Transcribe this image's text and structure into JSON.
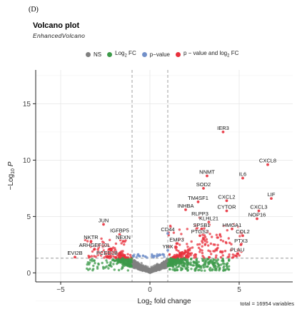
{
  "panel_label": "(D)",
  "chart_data": {
    "type": "scatter",
    "title": "Volcano plot",
    "subtitle": "EnhancedVolcano",
    "xlabel": "Log2 fold change",
    "ylabel": "-Log10 P",
    "xlim": [
      -6.4,
      8.0
    ],
    "ylim": [
      -0.8,
      18.0
    ],
    "x_ticks": [
      -5,
      0,
      5
    ],
    "y_ticks": [
      0,
      5,
      10,
      15
    ],
    "grid": true,
    "legend_position": "top",
    "fc_cutoff": 1,
    "p_cutoff_neglog10": 1.3,
    "colors": {
      "ns": "#808080",
      "log2fc": "#3c9a49",
      "pvalue": "#7290c9",
      "both": "#e8303c",
      "cutoff_line": "#888888"
    },
    "legend": [
      {
        "label": "NS",
        "color": "#808080"
      },
      {
        "label": "Log2 FC",
        "color": "#3c9a49"
      },
      {
        "label": "p−value",
        "color": "#7290c9"
      },
      {
        "label": "p − value and log2 FC",
        "color": "#e8303c"
      }
    ],
    "labeled_points": [
      {
        "label": "IER3",
        "x": 4.1,
        "y": 12.5
      },
      {
        "label": "CXCL8",
        "x": 6.6,
        "y": 9.6
      },
      {
        "label": "NNMT",
        "x": 3.2,
        "y": 8.6
      },
      {
        "label": "IL6",
        "x": 5.2,
        "y": 8.4
      },
      {
        "label": "SOD2",
        "x": 3.0,
        "y": 7.5
      },
      {
        "label": "LIF",
        "x": 6.8,
        "y": 6.6
      },
      {
        "label": "TM4SF1",
        "x": 2.7,
        "y": 6.3
      },
      {
        "label": "CXCL2",
        "x": 4.3,
        "y": 6.4
      },
      {
        "label": "CXCL3",
        "x": 6.1,
        "y": 5.5
      },
      {
        "label": "INHBA",
        "x": 2.0,
        "y": 5.6
      },
      {
        "label": "CYTOR",
        "x": 4.3,
        "y": 5.5
      },
      {
        "label": "RLPP3",
        "x": 2.8,
        "y": 4.9
      },
      {
        "label": "NOP16",
        "x": 6.0,
        "y": 4.8
      },
      {
        "label": "KLHL21",
        "x": 3.3,
        "y": 4.5
      },
      {
        "label": "SPSB1",
        "x": 2.9,
        "y": 3.9
      },
      {
        "label": "HMGA1",
        "x": 4.6,
        "y": 3.9
      },
      {
        "label": "CD44",
        "x": 1.0,
        "y": 3.5
      },
      {
        "label": "PTGS2",
        "x": 2.8,
        "y": 3.3
      },
      {
        "label": "COL2",
        "x": 5.2,
        "y": 3.3
      },
      {
        "label": "PTX3",
        "x": 5.1,
        "y": 2.5
      },
      {
        "label": "EMP3",
        "x": 1.5,
        "y": 2.6
      },
      {
        "label": "PLAU",
        "x": 4.9,
        "y": 1.7
      },
      {
        "label": "YBX",
        "x": 1.0,
        "y": 2.0
      },
      {
        "label": "JUN",
        "x": -2.6,
        "y": 4.3
      },
      {
        "label": "IGFBP5",
        "x": -1.7,
        "y": 3.4
      },
      {
        "label": "NKTR",
        "x": -3.3,
        "y": 2.8
      },
      {
        "label": "NEXN",
        "x": -1.5,
        "y": 2.8
      },
      {
        "label": "ARHGEF10L",
        "x": -3.1,
        "y": 2.1
      },
      {
        "label": "EVI2B",
        "x": -4.2,
        "y": 1.4
      },
      {
        "label": "PCED1B",
        "x": -2.4,
        "y": 1.4
      }
    ],
    "total_variables": 16954
  },
  "caption": "total = 16954 variables"
}
